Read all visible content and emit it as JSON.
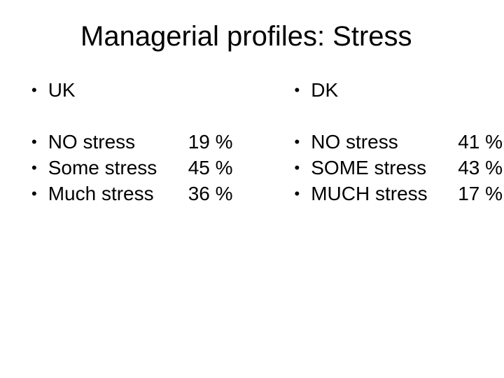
{
  "title": "Managerial profiles: Stress",
  "bullet_char": "•",
  "title_fontsize": 40,
  "body_fontsize": 28,
  "background_color": "#ffffff",
  "text_color": "#000000",
  "columns": {
    "left": {
      "header": "UK",
      "items": [
        {
          "label": "NO stress",
          "value": "19 %"
        },
        {
          "label": "Some stress",
          "value": "45 %"
        },
        {
          "label": "Much stress",
          "value": "36 %"
        }
      ]
    },
    "right": {
      "header": "DK",
      "items": [
        {
          "label": "NO stress",
          "value": "41 %"
        },
        {
          "label": "SOME stress",
          "value": "43 %"
        },
        {
          "label": "MUCH stress",
          "value": "17 %"
        }
      ]
    }
  }
}
